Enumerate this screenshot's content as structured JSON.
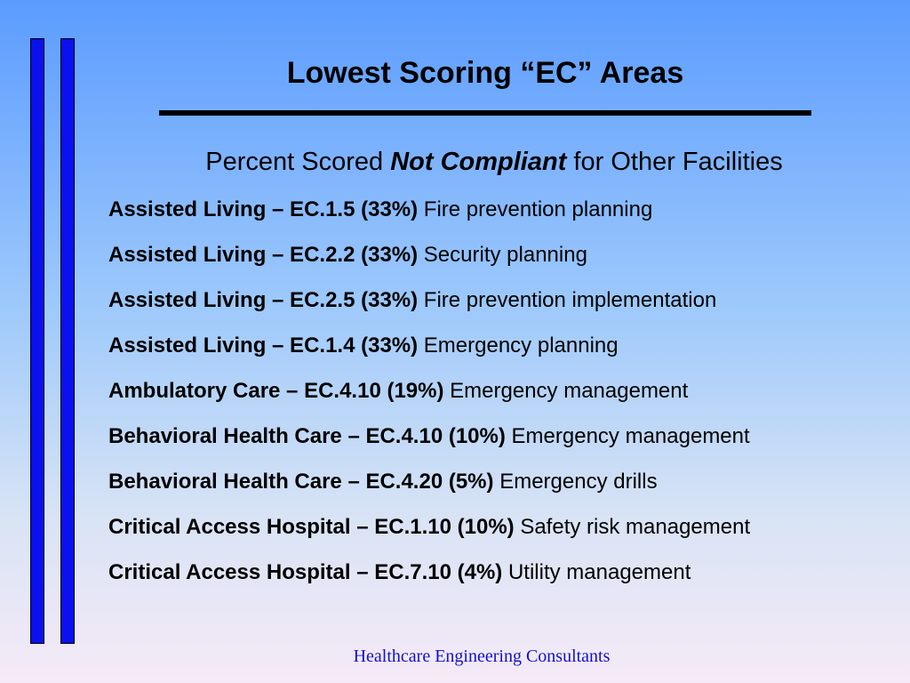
{
  "slide": {
    "title": "Lowest Scoring “EC” Areas",
    "subtitle": {
      "prefix": "Percent Scored ",
      "emphasis": "Not Compliant",
      "suffix": " for Other Facilities"
    },
    "items": [
      {
        "code": "Assisted Living – EC.1.5 (33%)",
        "description": "Fire prevention planning"
      },
      {
        "code": "Assisted Living – EC.2.2 (33%)",
        "description": "Security planning"
      },
      {
        "code": "Assisted Living – EC.2.5 (33%)",
        "description": "Fire prevention implementation"
      },
      {
        "code": "Assisted Living – EC.1.4 (33%)",
        "description": "Emergency planning"
      },
      {
        "code": "Ambulatory Care – EC.4.10 (19%)",
        "description": "Emergency management"
      },
      {
        "code": "Behavioral Health Care – EC.4.10 (10%)",
        "description": "Emergency management"
      },
      {
        "code": "Behavioral Health Care – EC.4.20 (5%)",
        "description": "Emergency drills"
      },
      {
        "code": "Critical Access Hospital – EC.1.10 (10%)",
        "description": "Safety risk management"
      },
      {
        "code": "Critical Access Hospital – EC.7.10 (4%)",
        "description": "Utility management"
      }
    ],
    "footer": "Healthcare Engineering Consultants"
  },
  "colors": {
    "accent_bars": "#0a10ee",
    "footer_text": "#1212c8",
    "background_top": "#5b9cff",
    "background_bottom": "#f6eaf6"
  }
}
